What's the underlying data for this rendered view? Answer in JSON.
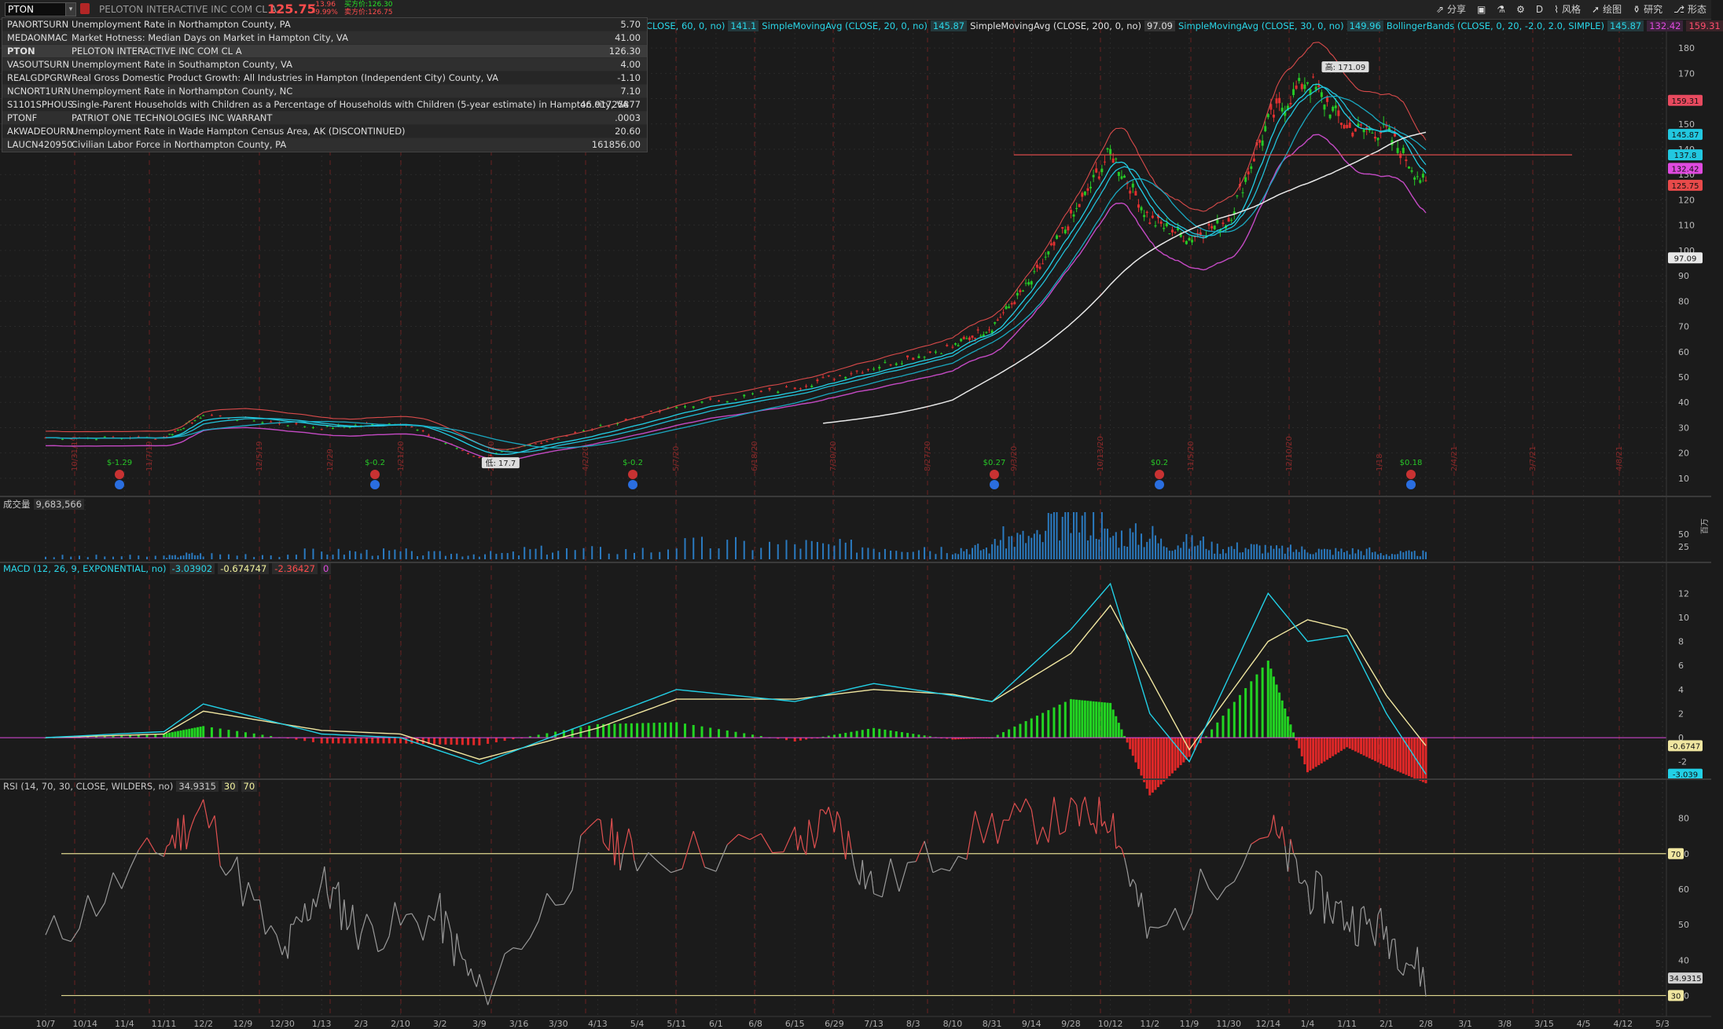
{
  "header": {
    "symbol_input": "PTON",
    "symbol_description": "PELOTON INTERACTIVE INC COM CL A",
    "last_price": "125.75",
    "change": "-13.96",
    "change_pct": "-9.99%",
    "bid_label": "买方价:126.30",
    "ask_label": "卖方价:126.75"
  },
  "toolbar": [
    {
      "icon": "share-icon",
      "label": "分享"
    },
    {
      "icon": "panel-icon",
      "label": ""
    },
    {
      "icon": "flask-icon",
      "label": ""
    },
    {
      "icon": "gear-icon",
      "label": ""
    },
    {
      "icon": "",
      "label": "D"
    },
    {
      "icon": "style-icon",
      "label": "风格"
    },
    {
      "icon": "drawing-icon",
      "label": "绘图"
    },
    {
      "icon": "study-icon",
      "label": "研究"
    },
    {
      "icon": "pattern-icon",
      "label": "形态"
    }
  ],
  "dropdown": [
    {
      "symbol": "PANORTSURN",
      "description": "Unemployment Rate in Northampton County, PA",
      "value": "5.70"
    },
    {
      "symbol": "MEDAONMAC",
      "description": "Market Hotness: Median Days on Market in Hampton City, VA",
      "value": "41.00"
    },
    {
      "symbol": "PTON",
      "description": "PELOTON INTERACTIVE INC COM CL A",
      "value": "126.30"
    },
    {
      "symbol": "VASOUTSURN",
      "description": "Unemployment Rate in Southampton County, VA",
      "value": "4.00"
    },
    {
      "symbol": "REALGDPGRW",
      "description": "Real Gross Domestic Product Growth: All Industries in Hampton (Independent City) County, VA",
      "value": "-1.10"
    },
    {
      "symbol": "NCNORT1URN",
      "description": "Unemployment Rate in Northampton County, NC",
      "value": "7.10"
    },
    {
      "symbol": "S1101SPHOUS",
      "description": "Single-Parent Households with Children as a Percentage of Households with Children (5-year estimate) in Hampton city, VA",
      "value": "46.91725877"
    },
    {
      "symbol": "PTONF",
      "description": "PATRIOT ONE TECHNOLOGIES INC WARRANT",
      "value": ".0003"
    },
    {
      "symbol": "AKWADEOURN",
      "description": "Unemployment Rate in Wade Hampton Census Area, AK (DISCONTINUED)",
      "value": "20.60"
    },
    {
      "symbol": "LAUCN420950",
      "description": "Civilian Labor Force in Northampton County, PA",
      "value": "161856.00"
    }
  ],
  "studies": [
    {
      "name": "CLOSE, 60, 0, no)",
      "value": "141.1"
    },
    {
      "name": "SimpleMovingAvg (CLOSE, 20, 0, no)",
      "value": "145.87"
    },
    {
      "name": "SimpleMovingAvg (CLOSE, 200, 0, no)",
      "value": "97.09"
    },
    {
      "name": "SimpleMovingAvg (CLOSE, 30, 0, no)",
      "value": "149.96"
    },
    {
      "name": "BollingerBands (CLOSE, 0, 20, -2.0, 2.0, SIMPLE)",
      "values": [
        "145.87",
        "132.42",
        "159.31"
      ]
    }
  ],
  "volume_pane": {
    "label": "成交量",
    "value": "9,683,566",
    "axis_ticks": [
      "50",
      "25"
    ],
    "unit_label": "百万"
  },
  "macd_pane": {
    "label": "MACD (12, 26, 9, EXPONENTIAL, no)",
    "values": [
      "-3.03902",
      "-0.674747",
      "-2.36427",
      "0"
    ],
    "axis_ticks": [
      "12",
      "10",
      "8",
      "6",
      "4",
      "2",
      "0",
      "-2"
    ],
    "tag_signal": "-0.6747",
    "tag_value": "-3.039"
  },
  "rsi_pane": {
    "label": "RSI (14, 70, 30, CLOSE, WILDERS, no)",
    "values": [
      "34.9315",
      "30",
      "70"
    ],
    "axis_ticks": [
      "80",
      "70",
      "60",
      "50",
      "40",
      "30"
    ],
    "tag_value": "34.9315",
    "tag_70": "70",
    "tag_30": "30"
  },
  "price_axis": {
    "ticks": [
      "180",
      "170",
      "160",
      "150",
      "140",
      "130",
      "120",
      "110",
      "100",
      "90",
      "80",
      "70",
      "60",
      "50",
      "40",
      "30",
      "20",
      "10"
    ],
    "tags": [
      {
        "label": "159.31",
        "color": "#e84a5f"
      },
      {
        "label": "145.87",
        "color": "#22c8e0"
      },
      {
        "label": "137.8",
        "color": "#22c8e0"
      },
      {
        "label": "132.42",
        "color": "#e04ae0"
      },
      {
        "label": "125.75",
        "color": "#e84a4a"
      },
      {
        "label": "97.09",
        "color": "#e8e8e8"
      }
    ]
  },
  "annotations": {
    "high_label": "高: 171.09",
    "low_label": "低: 17.7",
    "events": [
      "$-1.29",
      "$-0.2",
      "$-0.2",
      "$0.27",
      "$0.2",
      "$0.18"
    ],
    "vertical_date_labels": [
      "10/31/19",
      "11/7/19",
      "12/5/19",
      "12/29",
      "1/21/20",
      "2/27/20",
      "4/2/20",
      "5/7/20",
      "6/18/20",
      "7/30/20",
      "8/27/20",
      "9/3/20",
      "10/13/20",
      "11/5/20",
      "12/10/20",
      "1/18",
      "2/4/21",
      "3/7/21",
      "4/8/21"
    ]
  },
  "x_axis_labels": [
    "10/7",
    "10/14",
    "11/4",
    "11/11",
    "12/2",
    "12/9",
    "12/30",
    "1/13",
    "2/3",
    "2/10",
    "3/2",
    "3/9",
    "3/16",
    "3/30",
    "4/13",
    "5/4",
    "5/11",
    "6/1",
    "6/8",
    "6/15",
    "6/29",
    "7/13",
    "8/3",
    "8/10",
    "8/31",
    "9/14",
    "9/28",
    "10/12",
    "11/2",
    "11/9",
    "11/30",
    "12/14",
    "1/4",
    "1/11",
    "2/1",
    "2/8",
    "3/1",
    "3/8",
    "3/15",
    "4/5",
    "4/12",
    "5/3"
  ],
  "chart_data": {
    "type": "line",
    "title": "",
    "xlabel": "",
    "ylabel": "",
    "price_ylim": [
      5,
      185
    ],
    "series": [
      {
        "name": "",
        "x": [
          "10/7",
          "11/11",
          "12/2",
          "1/13",
          "2/10",
          "3/9",
          "3/30",
          "5/11",
          "6/15",
          "7/13",
          "8/10",
          "8/31",
          "9/14",
          "9/28",
          "10/12",
          "11/2",
          "11/9",
          "11/30",
          "12/14",
          "1/4",
          "1/11",
          "2/1",
          "2/8"
        ],
        "values": [
          26,
          26,
          35,
          30,
          32,
          18,
          26,
          38,
          46,
          54,
          62,
          70,
          88,
          112,
          139,
          112,
          105,
          112,
          151,
          168,
          148,
          147,
          125.75
        ]
      }
    ],
    "rsi": {
      "x": [
        "10/7",
        "11/11",
        "12/2",
        "12/30",
        "1/13",
        "2/3",
        "3/2",
        "3/9",
        "4/13",
        "5/4",
        "6/15",
        "6/29",
        "7/13",
        "8/31",
        "9/28",
        "10/12",
        "11/2",
        "12/14",
        "1/4",
        "1/11",
        "2/1",
        "2/8"
      ],
      "values": [
        45,
        72,
        82,
        40,
        62,
        48,
        52,
        30,
        75,
        70,
        72,
        80,
        60,
        78,
        80,
        82,
        45,
        78,
        60,
        52,
        48,
        34.9
      ]
    },
    "macd": {
      "x": [
        "10/7",
        "11/11",
        "12/2",
        "1/13",
        "2/10",
        "3/9",
        "4/13",
        "5/11",
        "6/15",
        "7/13",
        "8/10",
        "8/31",
        "9/28",
        "10/12",
        "11/2",
        "11/9",
        "12/14",
        "1/4",
        "1/11",
        "2/1",
        "2/8"
      ],
      "values": [
        0,
        0.5,
        2.8,
        0.3,
        0,
        -2.2,
        1.5,
        4,
        3,
        4.5,
        3.5,
        3,
        9,
        12.8,
        2,
        -2,
        12,
        8,
        8.5,
        2,
        -3.04
      ],
      "signal": [
        0,
        0.3,
        2.2,
        0.6,
        0.3,
        -1.8,
        0.8,
        3.2,
        3.2,
        4,
        3.6,
        3,
        7,
        11,
        5,
        -1,
        8,
        9.8,
        9,
        3.5,
        -0.67
      ]
    },
    "volume": {
      "values_millions": [
        5,
        8,
        12,
        9,
        15,
        25,
        22,
        18,
        35,
        65,
        40,
        28,
        20,
        16,
        14,
        9.7
      ]
    }
  }
}
